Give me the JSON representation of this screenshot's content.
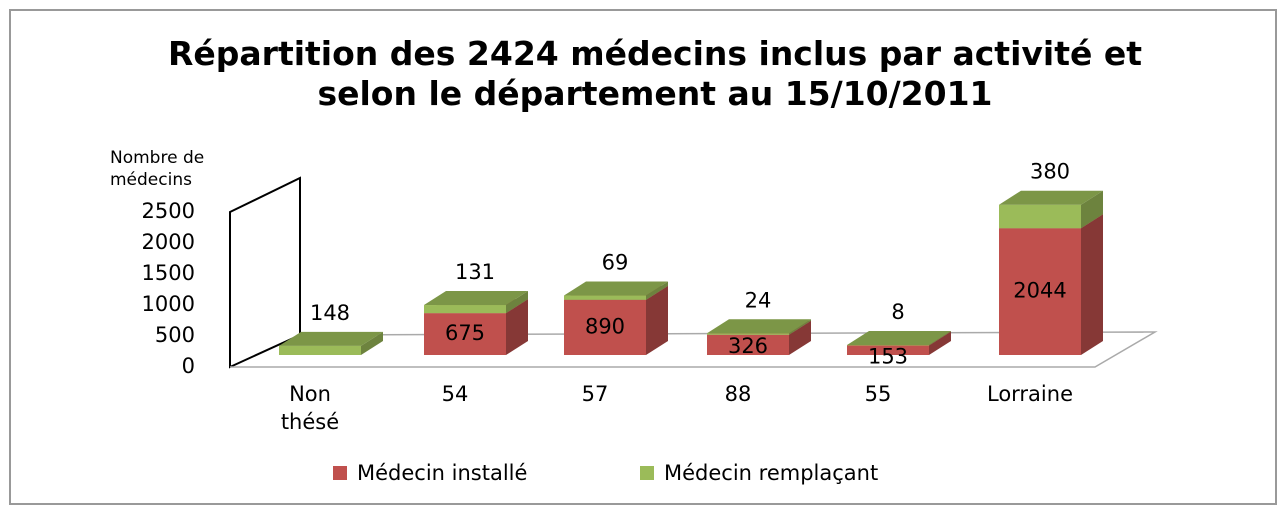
{
  "chart_data": {
    "type": "bar3d_stacked",
    "title": "Répartition des 2424 médecins inclus par activité et selon le département au 15/10/2011",
    "y_label": "Nombre de médecins",
    "categories": [
      "Non thésé",
      "54",
      "57",
      "88",
      "55",
      "Lorraine"
    ],
    "series": [
      {
        "name": "Médecin installé",
        "color": "#c0504d",
        "values": [
          null,
          675,
          890,
          326,
          153,
          2044
        ]
      },
      {
        "name": "Médecin remplaçant",
        "color": "#9bbb59",
        "values": [
          148,
          131,
          69,
          24,
          8,
          380
        ]
      }
    ],
    "ylim": [
      0,
      2500
    ],
    "yticks": [
      0,
      500,
      1000,
      1500,
      2000,
      2500
    ],
    "legend": "bottom"
  }
}
